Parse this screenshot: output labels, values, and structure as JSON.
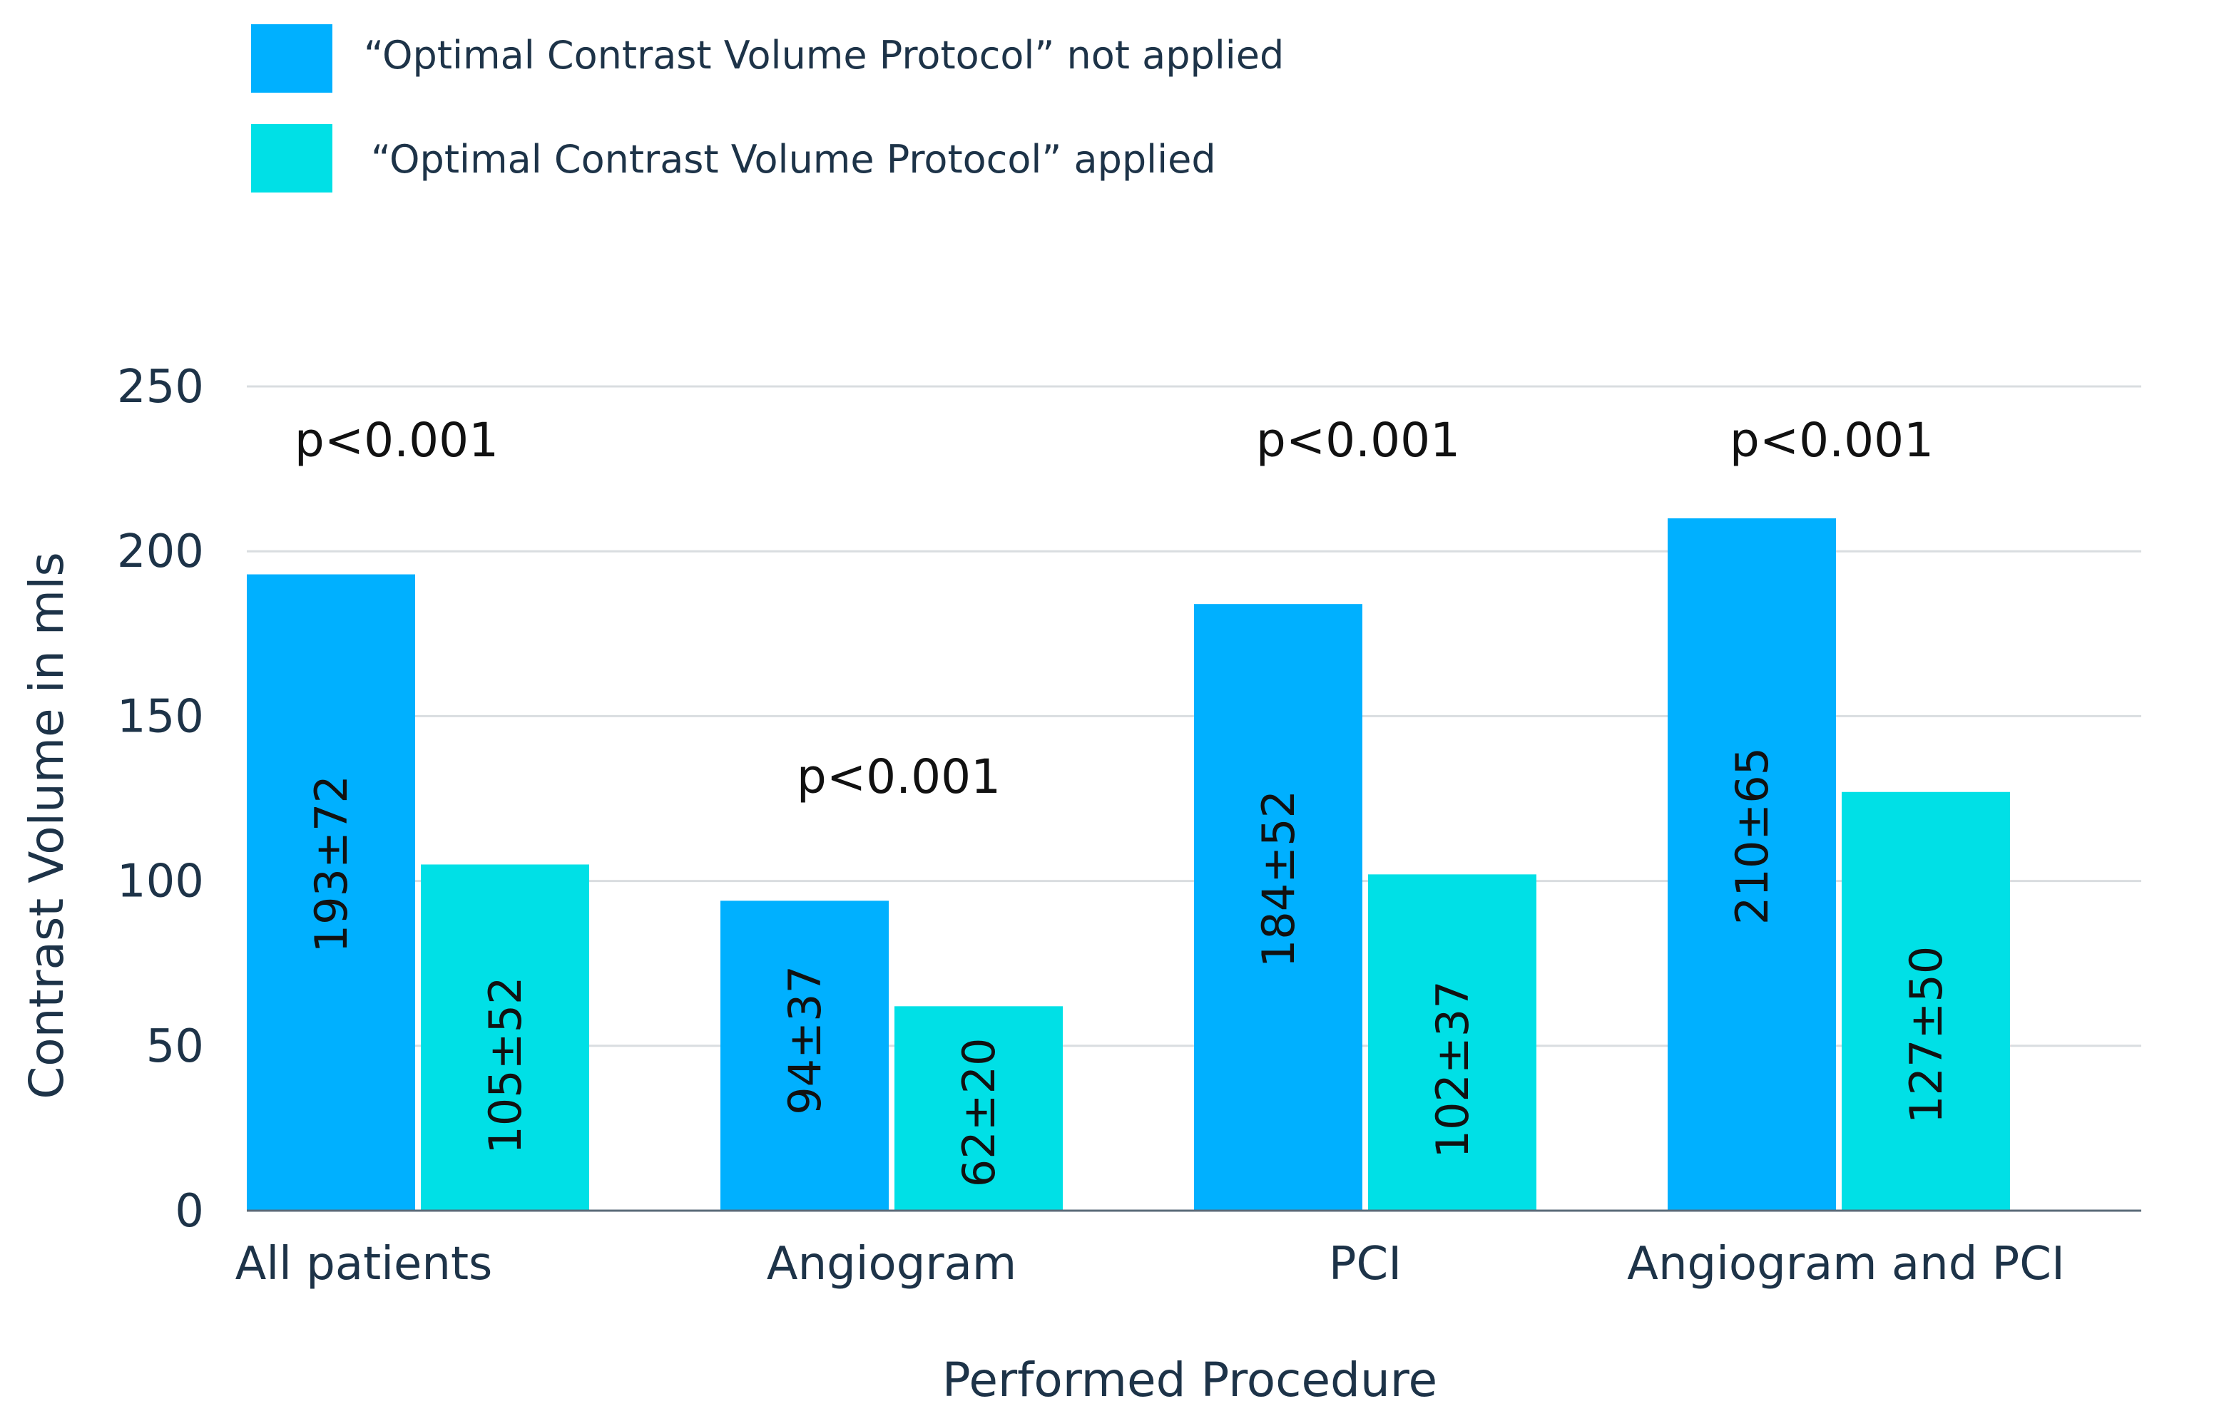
{
  "colors": {
    "series1": "#00b0ff",
    "series2": "#00e0e6",
    "grid": "#d9dde0",
    "axis": "#5a6a78",
    "text": "#1d3348"
  },
  "chart_data": {
    "type": "bar",
    "title": "",
    "xlabel": "Performed Procedure",
    "ylabel": "Contrast Volume in mls",
    "ylim": [
      0,
      250
    ],
    "yticks": [
      0,
      50,
      100,
      150,
      200,
      250
    ],
    "grid": true,
    "legend_position": "top-left",
    "categories": [
      "All patients",
      "Angiogram",
      "PCI",
      "Angiogram and PCI"
    ],
    "series": [
      {
        "name": "“Optimal Contrast Volume Protocol” not applied",
        "values": [
          193,
          94,
          184,
          210
        ],
        "labels": [
          "193±72",
          "94±37",
          "184±52",
          "210±65"
        ]
      },
      {
        "name": "“Optimal Contrast Volume Protocol” applied",
        "values": [
          105,
          62,
          102,
          127
        ],
        "labels": [
          "105±52",
          "62±20",
          "102±37",
          "127±50"
        ]
      }
    ],
    "annotations": [
      "p<0.001",
      "p<0.001",
      "p<0.001",
      "p<0.001"
    ]
  }
}
